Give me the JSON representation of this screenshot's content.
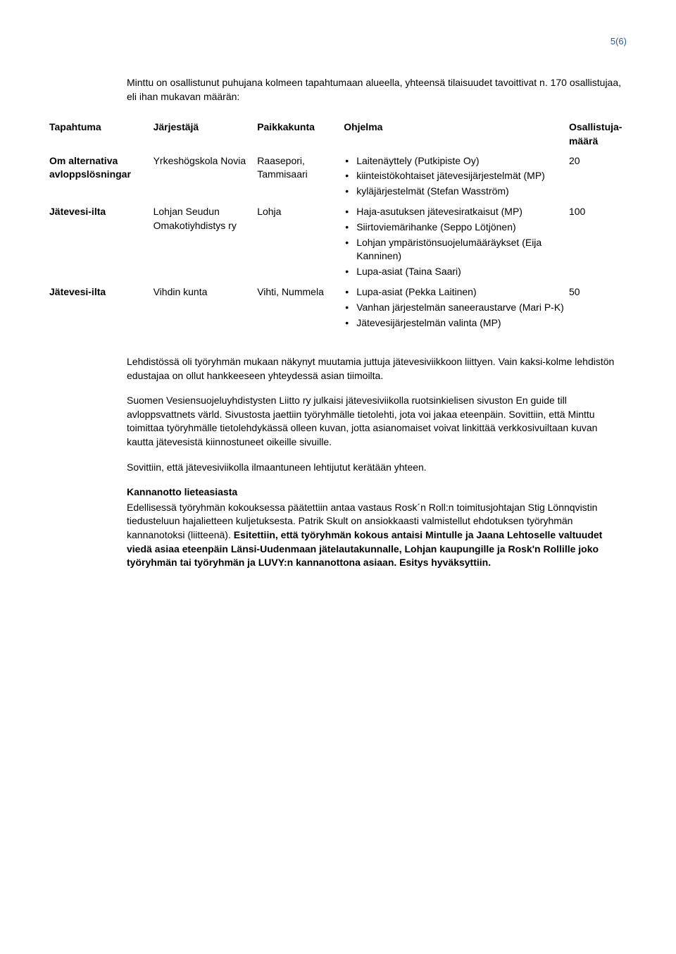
{
  "page_number": "5(6)",
  "intro": "Minttu on osallistunut puhujana kolmeen tapahtumaan alueella, yhteensä tilaisuudet tavoittivat n. 170 osallistujaa, eli ihan mukavan määrän:",
  "table_headers": {
    "event": "Tapahtuma",
    "org": "Järjestäjä",
    "loc": "Paikkakunta",
    "prog": "Ohjelma",
    "count": "Osallistuja-määrä"
  },
  "row1": {
    "event": "Om alternativa avloppslösningar",
    "org": "Yrkeshögskola Novia",
    "loc": "Raasepori, Tammisaari",
    "p1": "Laitenäyttely (Putkipiste Oy)",
    "p2": "kiinteistökohtaiset jätevesijärjestelmät (MP)",
    "p3": "kyläjärjestelmät (Stefan Wasström)",
    "count": "20"
  },
  "row2": {
    "event": "Jätevesi-ilta",
    "org": "Lohjan Seudun Omakotiyhdistys ry",
    "loc": "Lohja",
    "p1": "Haja-asutuksen jätevesiratkaisut (MP)",
    "p2": "Siirtoviemärihanke (Seppo Lötjönen)",
    "p3": "Lohjan ympäristönsuojelumääräykset (Eija Kanninen)",
    "p4": "Lupa-asiat (Taina Saari)",
    "count": "100"
  },
  "row3": {
    "event": "Jätevesi-ilta",
    "org": "Vihdin kunta",
    "loc": "Vihti, Nummela",
    "p1": "Lupa-asiat (Pekka Laitinen)",
    "p2": "Vanhan järjestelmän saneeraustarve (Mari P-K)",
    "p3": "Jätevesijärjestelmän valinta (MP)",
    "count": "50"
  },
  "para1": "Lehdistössä oli työryhmän mukaan näkynyt muutamia juttuja jätevesiviikkoon liittyen. Vain kaksi-kolme lehdistön edustajaa on ollut hankkeeseen yhteydessä asian tiimoilta.",
  "para2": "Suomen Vesiensuojeluyhdistysten Liitto ry julkaisi jätevesiviikolla ruotsinkielisen sivuston En guide till avloppsvattnets värld. Sivustosta jaettiin työryhmälle tietolehti, jota voi jakaa eteenpäin. Sovittiin, että Minttu toimittaa työryhmälle tietolehdykässä olleen kuvan, jotta asianomaiset voivat linkittää verkkosivuiltaan kuvan kautta jätevesistä kiinnostuneet oikeille sivuille.",
  "para3": "Sovittiin, että jätevesiviikolla ilmaantuneen lehtijutut kerätään yhteen.",
  "heading": "Kannanotto lieteasiasta",
  "para4_a": "Edellisessä työryhmän kokouksessa päätettiin antaa vastaus Rosk´n Roll:n toimitusjohtajan Stig Lönnqvistin tiedusteluun hajalietteen kuljetuksesta. Patrik Skult on ansiokkaasti valmistellut ehdotuksen työryhmän kannanotoksi (liitteenä). ",
  "para4_b": "Esitettiin, että työryhmän kokous antaisi Mintulle ja Jaana Lehtoselle valtuudet viedä asiaa eteenpäin Länsi-Uudenmaan jätelautakunnalle, Lohjan kaupungille ja Rosk'n Rollille joko työryhmän tai työryhmän ja LUVY:n kannanottona asiaan. Esitys hyväksyttiin."
}
